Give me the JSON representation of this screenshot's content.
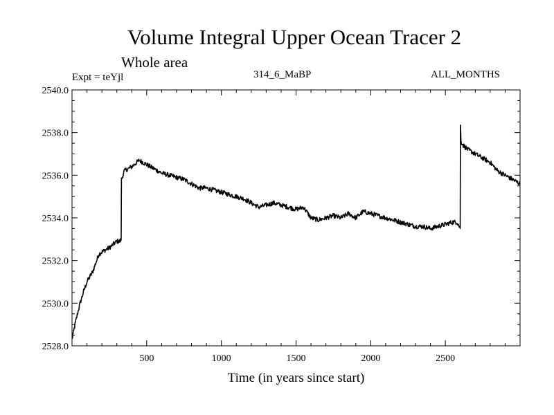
{
  "chart_data": {
    "type": "line",
    "title": "Volume Integral Upper Ocean Tracer 2",
    "subtitle": "Whole area",
    "annotations": {
      "left": "Expt = teYjl",
      "center": "314_6_MaBP",
      "right": "ALL_MONTHS"
    },
    "xlabel": "Time (in years since start)",
    "ylabel": "",
    "xlim": [
      0,
      3000
    ],
    "ylim": [
      2528.0,
      2540.0
    ],
    "x_ticks": [
      500,
      1000,
      1500,
      2000,
      2500
    ],
    "x_tick_labels": [
      "500",
      "1000",
      "1500",
      "2000",
      "2500"
    ],
    "y_ticks": [
      2528.0,
      2530.0,
      2532.0,
      2534.0,
      2536.0,
      2538.0,
      2540.0
    ],
    "y_tick_labels": [
      "2528.0",
      "2530.0",
      "2532.0",
      "2534.0",
      "2536.0",
      "2538.0",
      "2540.0"
    ],
    "series": [
      {
        "name": "Tracer 2",
        "x": [
          0,
          20,
          50,
          80,
          100,
          140,
          180,
          200,
          250,
          300,
          320,
          329,
          331,
          350,
          400,
          450,
          500,
          550,
          600,
          650,
          700,
          750,
          800,
          850,
          900,
          950,
          1000,
          1050,
          1100,
          1150,
          1200,
          1250,
          1300,
          1350,
          1400,
          1450,
          1500,
          1550,
          1600,
          1650,
          1700,
          1750,
          1800,
          1850,
          1900,
          1950,
          2000,
          2050,
          2100,
          2150,
          2200,
          2250,
          2300,
          2350,
          2400,
          2450,
          2500,
          2550,
          2580,
          2599,
          2601,
          2604,
          2620,
          2650,
          2700,
          2750,
          2800,
          2850,
          2900,
          2950,
          3000
        ],
        "y": [
          2528.3,
          2529.0,
          2529.9,
          2530.6,
          2531.0,
          2531.5,
          2532.3,
          2532.4,
          2532.6,
          2532.9,
          2532.9,
          2533.0,
          2535.8,
          2536.2,
          2536.4,
          2536.7,
          2536.5,
          2536.3,
          2536.1,
          2536.0,
          2535.9,
          2535.8,
          2535.6,
          2535.4,
          2535.4,
          2535.3,
          2535.2,
          2535.1,
          2535.0,
          2534.9,
          2534.7,
          2534.5,
          2534.6,
          2534.7,
          2534.6,
          2534.5,
          2534.4,
          2534.5,
          2534.0,
          2533.9,
          2534.0,
          2534.1,
          2534.0,
          2534.2,
          2534.0,
          2534.3,
          2534.2,
          2534.1,
          2534.0,
          2533.9,
          2533.8,
          2533.7,
          2533.6,
          2533.6,
          2533.5,
          2533.6,
          2533.7,
          2533.8,
          2533.8,
          2533.5,
          2538.4,
          2537.6,
          2537.4,
          2537.2,
          2537.0,
          2536.8,
          2536.6,
          2536.2,
          2536.0,
          2535.8,
          2535.6
        ]
      }
    ]
  }
}
